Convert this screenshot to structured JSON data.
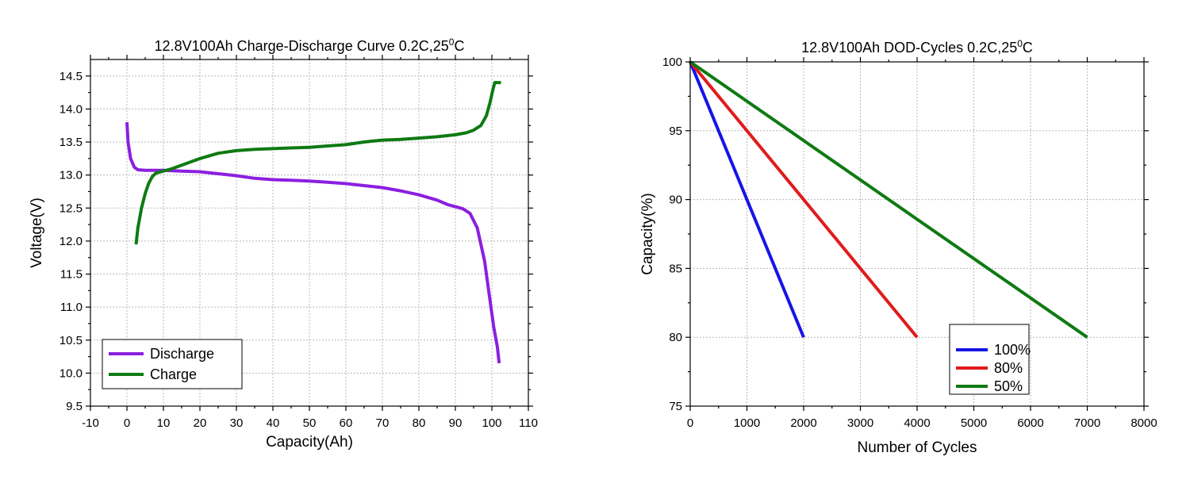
{
  "colors": {
    "discharge": "#8b1fe0",
    "charge": "#0e7a12",
    "dod100": "#1515e6",
    "dod80": "#e01b1b",
    "dod50": "#0e7a12"
  },
  "chart_data": [
    {
      "type": "line",
      "title": "12.8V100Ah Charge-Discharge Curve  0.2C,25",
      "title_sup": "0",
      "title_suffix": "C",
      "xlabel": "Capacity(Ah)",
      "ylabel": "Voltage(V)",
      "xlim": [
        -10,
        110
      ],
      "ylim": [
        9.5,
        14.75
      ],
      "xticks": [
        "-10",
        "0",
        "10",
        "20",
        "30",
        "40",
        "50",
        "60",
        "70",
        "80",
        "90",
        "100",
        "110"
      ],
      "yticks": [
        "9.5",
        "10.0",
        "10.5",
        "11.0",
        "11.5",
        "12.0",
        "12.5",
        "13.0",
        "13.5",
        "14.0",
        "14.5"
      ],
      "grid": true,
      "legend_position": "bottom-left",
      "series": [
        {
          "name": "Discharge",
          "color_key": "discharge",
          "points": [
            [
              0,
              13.8
            ],
            [
              0.3,
              13.5
            ],
            [
              1,
              13.25
            ],
            [
              2,
              13.12
            ],
            [
              3,
              13.08
            ],
            [
              5,
              13.07
            ],
            [
              10,
              13.07
            ],
            [
              15,
              13.06
            ],
            [
              20,
              13.05
            ],
            [
              25,
              13.02
            ],
            [
              30,
              12.99
            ],
            [
              35,
              12.95
            ],
            [
              40,
              12.93
            ],
            [
              45,
              12.92
            ],
            [
              50,
              12.91
            ],
            [
              55,
              12.89
            ],
            [
              60,
              12.87
            ],
            [
              65,
              12.84
            ],
            [
              70,
              12.81
            ],
            [
              75,
              12.76
            ],
            [
              80,
              12.7
            ],
            [
              85,
              12.62
            ],
            [
              88,
              12.55
            ],
            [
              90,
              12.52
            ],
            [
              92,
              12.49
            ],
            [
              94,
              12.42
            ],
            [
              96,
              12.2
            ],
            [
              98,
              11.7
            ],
            [
              99.5,
              11.1
            ],
            [
              100.5,
              10.7
            ],
            [
              101.5,
              10.4
            ],
            [
              102,
              10.15
            ]
          ]
        },
        {
          "name": "Charge",
          "color_key": "charge",
          "points": [
            [
              2.5,
              11.95
            ],
            [
              3,
              12.2
            ],
            [
              4,
              12.5
            ],
            [
              5,
              12.72
            ],
            [
              6,
              12.88
            ],
            [
              7,
              12.98
            ],
            [
              8,
              13.03
            ],
            [
              10,
              13.06
            ],
            [
              12,
              13.09
            ],
            [
              15,
              13.15
            ],
            [
              20,
              13.25
            ],
            [
              25,
              13.33
            ],
            [
              30,
              13.37
            ],
            [
              35,
              13.39
            ],
            [
              40,
              13.4
            ],
            [
              45,
              13.41
            ],
            [
              50,
              13.42
            ],
            [
              55,
              13.44
            ],
            [
              60,
              13.46
            ],
            [
              65,
              13.5
            ],
            [
              70,
              13.53
            ],
            [
              75,
              13.54
            ],
            [
              80,
              13.56
            ],
            [
              85,
              13.58
            ],
            [
              90,
              13.61
            ],
            [
              93,
              13.64
            ],
            [
              95,
              13.68
            ],
            [
              97,
              13.75
            ],
            [
              98.5,
              13.9
            ],
            [
              99.5,
              14.1
            ],
            [
              100.3,
              14.3
            ],
            [
              100.8,
              14.4
            ],
            [
              102.5,
              14.4
            ]
          ]
        }
      ]
    },
    {
      "type": "line",
      "title": "12.8V100Ah DOD-Cycles  0.2C,25",
      "title_sup": "0",
      "title_suffix": "C",
      "xlabel": "Number of Cycles",
      "ylabel": "Capacity(%)",
      "xlim": [
        0,
        8000
      ],
      "ylim": [
        75,
        100
      ],
      "xticks": [
        "0",
        "1000",
        "2000",
        "3000",
        "4000",
        "5000",
        "6000",
        "7000",
        "8000"
      ],
      "yticks": [
        "75",
        "80",
        "85",
        "90",
        "95",
        "100"
      ],
      "grid": true,
      "legend_position": "bottom-center",
      "series": [
        {
          "name": "100%",
          "color_key": "dod100",
          "points": [
            [
              0,
              100
            ],
            [
              2000,
              80
            ]
          ]
        },
        {
          "name": "80%",
          "color_key": "dod80",
          "points": [
            [
              0,
              100
            ],
            [
              4000,
              80
            ]
          ]
        },
        {
          "name": "50%",
          "color_key": "dod50",
          "points": [
            [
              0,
              100
            ],
            [
              7000,
              80
            ]
          ]
        }
      ]
    }
  ]
}
